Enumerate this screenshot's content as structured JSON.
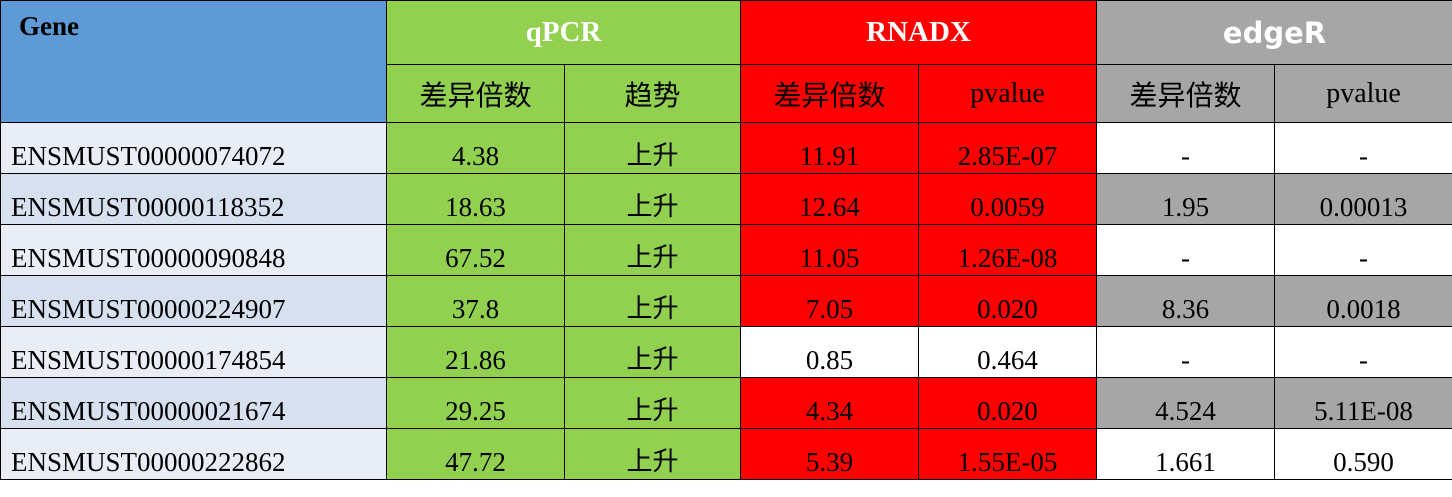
{
  "table": {
    "header": {
      "gene": "Gene",
      "groups": {
        "qpcr": "qPCR",
        "rnadx": "RNADX",
        "edger": "edgeR"
      },
      "sub": {
        "qpcr_fold": "差异倍数",
        "qpcr_trend": "趋势",
        "rnadx_fold": "差异倍数",
        "rnadx_pvalue": "pvalue",
        "edger_fold": "差异倍数",
        "edger_pvalue": "pvalue"
      }
    },
    "rows": [
      {
        "gene": "ENSMUST00000074072",
        "qpcr_fold": "4.38",
        "trend": "上升",
        "rnadx_fold": "11.91",
        "rnadx_pvalue": "2.85E-07",
        "edger_fold": "-",
        "edger_pvalue": "-"
      },
      {
        "gene": "ENSMUST00000118352",
        "qpcr_fold": "18.63",
        "trend": "上升",
        "rnadx_fold": "12.64",
        "rnadx_pvalue": "0.0059",
        "edger_fold": "1.95",
        "edger_pvalue": "0.00013"
      },
      {
        "gene": "ENSMUST00000090848",
        "qpcr_fold": "67.52",
        "trend": "上升",
        "rnadx_fold": "11.05",
        "rnadx_pvalue": "1.26E-08",
        "edger_fold": "-",
        "edger_pvalue": "-"
      },
      {
        "gene": "ENSMUST00000224907",
        "qpcr_fold": "37.8",
        "trend": "上升",
        "rnadx_fold": "7.05",
        "rnadx_pvalue": "0.020",
        "edger_fold": "8.36",
        "edger_pvalue": "0.0018"
      },
      {
        "gene": "ENSMUST00000174854",
        "qpcr_fold": "21.86",
        "trend": "上升",
        "rnadx_fold": "0.85",
        "rnadx_pvalue": "0.464",
        "edger_fold": "-",
        "edger_pvalue": "-"
      },
      {
        "gene": "ENSMUST00000021674",
        "qpcr_fold": "29.25",
        "trend": "上升",
        "rnadx_fold": "4.34",
        "rnadx_pvalue": "0.020",
        "edger_fold": "4.524",
        "edger_pvalue": "5.11E-08"
      },
      {
        "gene": "ENSMUST00000222862",
        "qpcr_fold": "47.72",
        "trend": "上升",
        "rnadx_fold": "5.39",
        "rnadx_pvalue": "1.55E-05",
        "edger_fold": "1.661",
        "edger_pvalue": "0.590"
      }
    ]
  },
  "colors": {
    "gene_header": "#5e9bd6",
    "qpcr": "#92d050",
    "rnadx": "#ff0000",
    "edger": "#a6a6a6",
    "gene_cell_light": "#e9eef6",
    "gene_cell_blue": "#d6e0ef",
    "neutral": "#ffffff"
  }
}
